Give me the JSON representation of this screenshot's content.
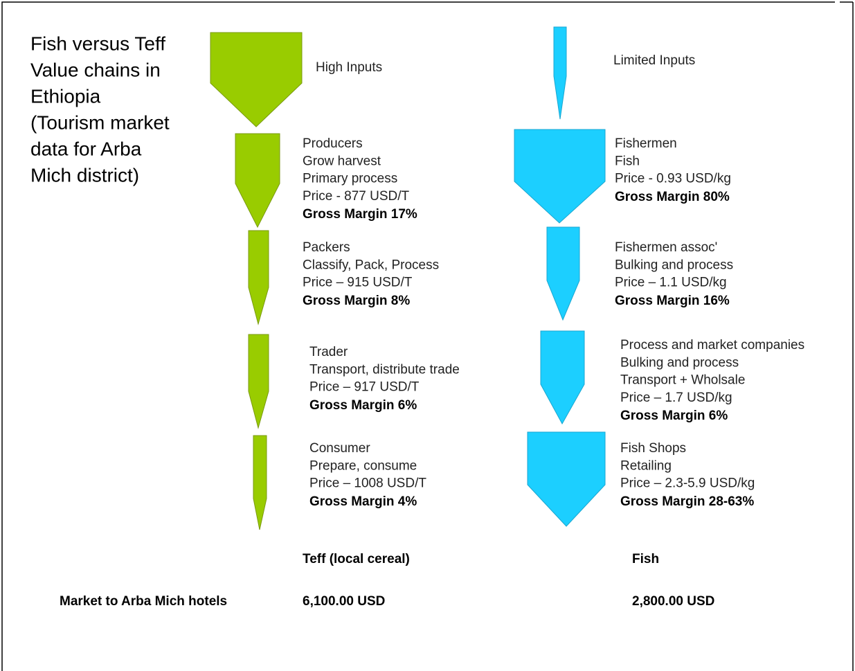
{
  "title_lines": [
    "Fish versus Teff",
    "Value chains in",
    "Ethiopia",
    "(Tourism market",
    "data for Arba",
    "Mich district)"
  ],
  "teff": {
    "inputs": "High Inputs",
    "stages": [
      {
        "lines": [
          "Producers",
          "Grow harvest",
          "Primary process",
          "Price  - 877 USD/T"
        ],
        "margin": "Gross Margin 17%"
      },
      {
        "lines": [
          "Packers",
          "Classify, Pack, Process",
          "Price – 915 USD/T"
        ],
        "margin": "Gross Margin 8%"
      },
      {
        "lines": [
          "Trader",
          "Transport, distribute trade",
          "Price – 917 USD/T"
        ],
        "margin": "Gross Margin 6%"
      },
      {
        "lines": [
          "Consumer",
          "Prepare, consume",
          "Price – 1008 USD/T"
        ],
        "margin": "Gross Margin 4%"
      }
    ],
    "name": "Teff (local cereal)",
    "market": "6,100.00 USD"
  },
  "fish": {
    "inputs": "Limited Inputs",
    "stages": [
      {
        "lines": [
          "Fishermen",
          "Fish",
          "Price  - 0.93 USD/kg"
        ],
        "margin": "Gross Margin 80%"
      },
      {
        "lines": [
          "Fishermen assoc'",
          "Bulking and process",
          "Price – 1.1 USD/kg"
        ],
        "margin": "Gross Margin 16%"
      },
      {
        "lines": [
          "Process and  market companies",
          "Bulking and process",
          "Transport + Wholsale",
          "Price – 1.7 USD/kg"
        ],
        "margin": "Gross Margin 6%"
      },
      {
        "lines": [
          "Fish Shops",
          "Retailing",
          "Price – 2.3-5.9 USD/kg"
        ],
        "margin": "Gross Margin 28-63%"
      }
    ],
    "name": "Fish",
    "market": "2,800.00 USD"
  },
  "market_label": "Market to Arba Mich hotels"
}
